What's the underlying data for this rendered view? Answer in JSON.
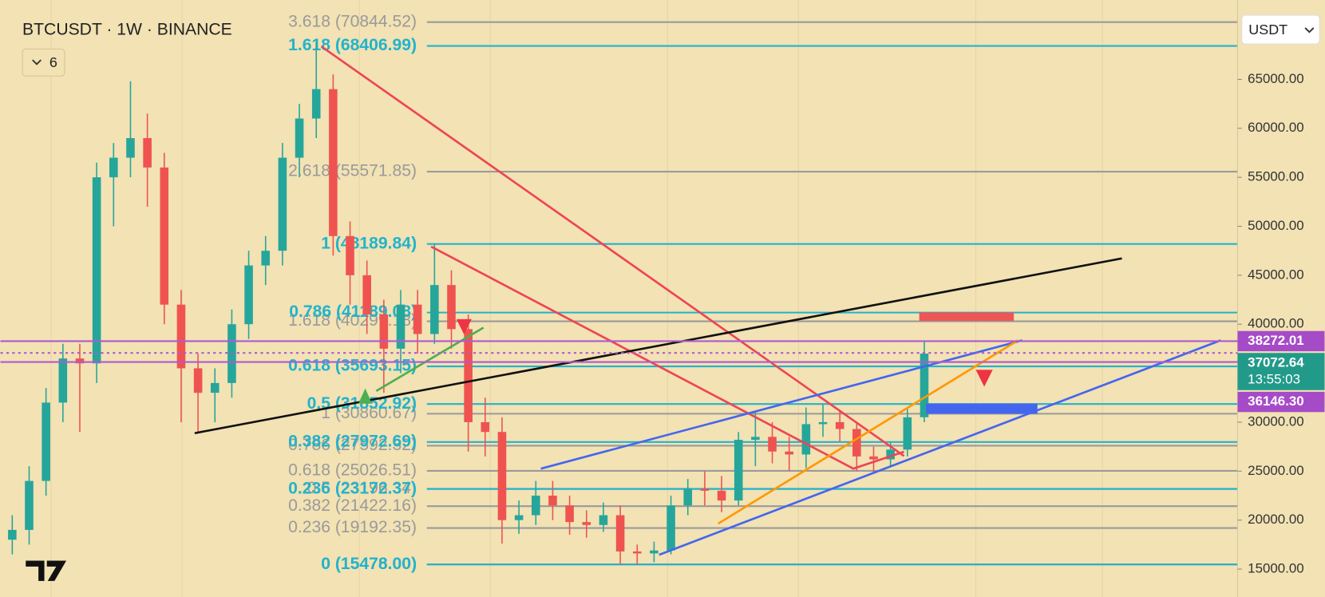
{
  "header": {
    "symbol": "BTCUSDT · 1W · BINANCE",
    "indicator_count": "6",
    "currency": "USDT"
  },
  "chart_data": {
    "type": "candlestick",
    "open": [
      18000,
      19000,
      24000,
      32000,
      36500,
      36000,
      55000,
      57000,
      59000,
      56000,
      42000,
      35500,
      33000,
      34000,
      40000,
      46000,
      47500,
      57000,
      61000,
      64000,
      49000,
      45000,
      41000,
      37500,
      42000,
      39000,
      44000,
      39500,
      30000,
      29000,
      20000,
      20500,
      22500,
      21500,
      19800,
      19500,
      20500,
      16800,
      16600,
      16900,
      21500,
      23200,
      23000,
      22000,
      28200,
      28500,
      27000,
      26700,
      29800,
      30000,
      29300,
      26500,
      26200,
      27200,
      30500
    ],
    "high": [
      20500,
      25500,
      33500,
      38000,
      38000,
      56500,
      58500,
      64800,
      61500,
      57500,
      43500,
      37000,
      35500,
      41500,
      47500,
      49000,
      58500,
      62500,
      68800,
      65500,
      50500,
      46500,
      42500,
      43500,
      43500,
      48200,
      45500,
      41000,
      32500,
      30500,
      22000,
      24000,
      24000,
      22500,
      21000,
      21800,
      21500,
      17500,
      17800,
      22500,
      24200,
      25000,
      24500,
      29000,
      31000,
      30000,
      28500,
      31500,
      31800,
      31200,
      30000,
      27500,
      28000,
      31500,
      38300
    ],
    "low": [
      16500,
      17500,
      22500,
      30000,
      29000,
      34000,
      50000,
      55000,
      52000,
      40000,
      30000,
      29000,
      30000,
      32500,
      38500,
      44000,
      46000,
      55000,
      59000,
      47000,
      42000,
      39000,
      33000,
      35000,
      37000,
      38000,
      37500,
      27000,
      26500,
      17600,
      18600,
      19500,
      20000,
      18500,
      18200,
      18800,
      15500,
      15500,
      15700,
      16500,
      20500,
      21500,
      20800,
      21500,
      25500,
      25800,
      25000,
      25300,
      28500,
      28000,
      25000,
      24900,
      25500,
      26500,
      30000
    ],
    "close": [
      19000,
      24000,
      32000,
      36500,
      36000,
      55000,
      57000,
      59000,
      56000,
      42000,
      35500,
      33000,
      34000,
      40000,
      46000,
      47500,
      57000,
      61000,
      64000,
      49000,
      45000,
      41000,
      37500,
      42000,
      39000,
      44000,
      39500,
      30000,
      29000,
      20000,
      20500,
      22500,
      21500,
      19800,
      19500,
      20500,
      16800,
      16600,
      16900,
      21500,
      23200,
      23000,
      22000,
      28200,
      28500,
      27000,
      26700,
      29800,
      30000,
      29300,
      26500,
      26200,
      27200,
      30500,
      37000
    ],
    "colors": {
      "up": "#26a69a",
      "down": "#ef5350"
    },
    "ylim": [
      12150,
      73100
    ],
    "yticks": [
      {
        "value": 15000,
        "label": "15000.00"
      },
      {
        "value": 20000,
        "label": "20000.00"
      },
      {
        "value": 25000,
        "label": "25000.00"
      },
      {
        "value": 30000,
        "label": "30000.00"
      },
      {
        "value": 35000,
        "label": "35000.00"
      },
      {
        "value": 40000,
        "label": "40000.00"
      },
      {
        "value": 45000,
        "label": "45000.00"
      },
      {
        "value": 50000,
        "label": "50000.00"
      },
      {
        "value": 55000,
        "label": "55000.00"
      },
      {
        "value": 60000,
        "label": "60000.00"
      },
      {
        "value": 65000,
        "label": "65000.00"
      }
    ],
    "fib_levels": [
      {
        "label": "3.618 (70844.52)",
        "value": 70844.52,
        "color": "#9a9a9a"
      },
      {
        "label": "2.618 (55571.85)",
        "value": 55571.85,
        "color": "#9a9a9a"
      },
      {
        "label": "1.618 (40299.18)",
        "value": 40299.18,
        "color": "#9a9a9a"
      },
      {
        "label": "1 (30860.67)",
        "value": 30860.67,
        "color": "#9a9a9a"
      },
      {
        "label": "0.786 (27592.32)",
        "value": 27592.32,
        "color": "#9a9a9a"
      },
      {
        "label": "0.618 (25026.51)",
        "value": 25026.51,
        "color": "#9a9a9a"
      },
      {
        "label": "0.5 (23196.34)",
        "value": 23196.34,
        "color": "#9a9a9a"
      },
      {
        "label": "0.382 (21422.16)",
        "value": 21422.16,
        "color": "#9a9a9a"
      },
      {
        "label": "0.236 (19192.35)",
        "value": 19192.35,
        "color": "#9a9a9a"
      },
      {
        "label": "0 (15476.00)",
        "value": 15476,
        "color": "#9a9a9a"
      },
      {
        "label": "1.618 (68406.99)",
        "value": 68406.99,
        "color": "#22b3cc"
      },
      {
        "label": "1 (48189.84)",
        "value": 48189.84,
        "color": "#22b3cc"
      },
      {
        "label": "0.786 (41189.08)",
        "value": 41189.08,
        "color": "#22b3cc"
      },
      {
        "label": "0.618 (35693.15)",
        "value": 35693.15,
        "color": "#22b3cc"
      },
      {
        "label": "0.5 (31852.92)",
        "value": 31852.92,
        "color": "#22b3cc"
      },
      {
        "label": "0.382 (27972.69)",
        "value": 27972.69,
        "color": "#22b3cc"
      },
      {
        "label": "0.236 (23172.37)",
        "value": 23172.37,
        "color": "#22b3cc"
      },
      {
        "label": "0 (15478.00)",
        "value": 15478,
        "color": "#22b3cc"
      }
    ],
    "price_labels": [
      {
        "value": 38272.01,
        "label": "38272.01",
        "color": "#a64bc8"
      },
      {
        "value": 37072.64,
        "label": "37072.64",
        "countdown": "13:55:03",
        "color": "#229a8a"
      },
      {
        "value": 36146.3,
        "label": "36146.30",
        "color": "#a64bc8"
      }
    ]
  }
}
